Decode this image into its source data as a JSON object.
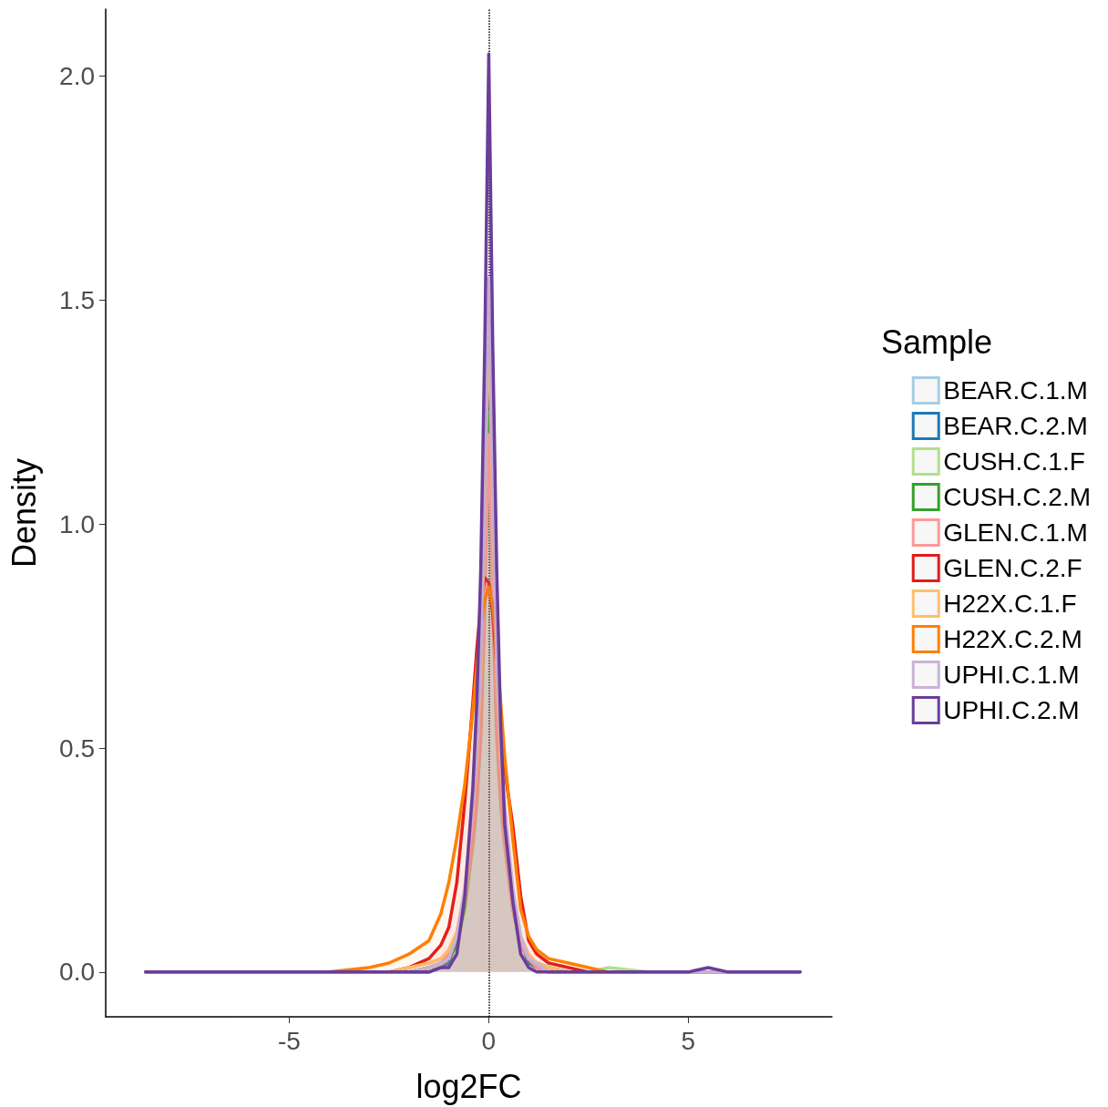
{
  "chart_data": {
    "type": "area",
    "xlabel": "log2FC",
    "ylabel": "Density",
    "legend_title": "Sample",
    "legend": "right",
    "grid": false,
    "marker": "none",
    "line_style": "solid",
    "x": [
      -8.6,
      -6,
      -5,
      -4,
      -3,
      -2.5,
      -2,
      -1.5,
      -1.2,
      -1,
      -0.8,
      -0.6,
      -0.4,
      -0.3,
      -0.2,
      -0.1,
      0,
      0.1,
      0.2,
      0.3,
      0.4,
      0.6,
      0.8,
      1,
      1.2,
      1.5,
      2,
      2.5,
      3,
      4,
      5,
      5.5,
      6,
      7,
      7.8
    ],
    "xlim": [
      -9.6,
      8.6
    ],
    "xticks": [
      -5,
      0,
      5
    ],
    "ylim": [
      -0.1,
      2.15
    ],
    "yticks": [
      {
        "value": 0,
        "label": "0.0"
      },
      0.5,
      {
        "value": 1,
        "label": "1.0"
      },
      1.5,
      {
        "value": 2,
        "label": "2.0"
      }
    ],
    "ref_lines": [
      {
        "axis": "x",
        "value": 0,
        "line_style": "dotted",
        "color": "#000000"
      }
    ],
    "series": [
      {
        "name": "BEAR.C.1.M",
        "color": "#a6cee3",
        "values": [
          0,
          0,
          0,
          0,
          0,
          0,
          0,
          0,
          0.01,
          0.02,
          0.07,
          0.16,
          0.32,
          0.43,
          0.61,
          0.95,
          1.35,
          0.95,
          0.61,
          0.43,
          0.32,
          0.16,
          0.07,
          0.02,
          0.01,
          0,
          0,
          0,
          0,
          0,
          0,
          0,
          0,
          0,
          0
        ]
      },
      {
        "name": "BEAR.C.2.M",
        "color": "#1f78b4",
        "values": [
          0,
          0,
          0,
          0,
          0,
          0,
          0,
          0,
          0.01,
          0.02,
          0.07,
          0.17,
          0.34,
          0.45,
          0.63,
          0.98,
          1.4,
          0.98,
          0.63,
          0.45,
          0.34,
          0.17,
          0.07,
          0.02,
          0.01,
          0,
          0,
          0,
          0,
          0,
          0,
          0,
          0,
          0,
          0
        ]
      },
      {
        "name": "CUSH.C.1.F",
        "color": "#b2df8a",
        "values": [
          0,
          0,
          0,
          0,
          0,
          0,
          0,
          0.01,
          0.02,
          0.03,
          0.06,
          0.14,
          0.28,
          0.37,
          0.52,
          0.8,
          1.15,
          0.8,
          0.52,
          0.37,
          0.28,
          0.14,
          0.06,
          0.03,
          0.02,
          0.01,
          0,
          0,
          0.01,
          0,
          0,
          0,
          0,
          0,
          0
        ]
      },
      {
        "name": "CUSH.C.2.M",
        "color": "#33a02c",
        "values": [
          0,
          0,
          0,
          0,
          0,
          0,
          0,
          0.01,
          0.02,
          0.03,
          0.06,
          0.15,
          0.3,
          0.4,
          0.56,
          0.88,
          1.25,
          0.88,
          0.56,
          0.4,
          0.3,
          0.15,
          0.06,
          0.03,
          0.02,
          0.01,
          0,
          0,
          0,
          0,
          0,
          0,
          0,
          0,
          0
        ]
      },
      {
        "name": "GLEN.C.1.M",
        "color": "#fb9a99",
        "values": [
          0,
          0,
          0,
          0,
          0,
          0,
          0,
          0.01,
          0.02,
          0.04,
          0.08,
          0.16,
          0.29,
          0.38,
          0.54,
          0.84,
          1.2,
          0.84,
          0.54,
          0.38,
          0.29,
          0.14,
          0.06,
          0.03,
          0.01,
          0,
          0,
          0,
          0,
          0,
          0,
          0,
          0,
          0,
          0
        ]
      },
      {
        "name": "GLEN.C.2.F",
        "color": "#e31a1c",
        "values": [
          0,
          0,
          0,
          0,
          0,
          0,
          0.01,
          0.03,
          0.06,
          0.1,
          0.2,
          0.38,
          0.6,
          0.72,
          0.82,
          0.88,
          0.87,
          0.8,
          0.68,
          0.55,
          0.45,
          0.33,
          0.17,
          0.07,
          0.04,
          0.02,
          0.01,
          0,
          0,
          0,
          0,
          0,
          0,
          0,
          0
        ]
      },
      {
        "name": "H22X.C.1.F",
        "color": "#fdbf6f",
        "values": [
          0,
          0,
          0,
          0,
          0,
          0,
          0.01,
          0.02,
          0.03,
          0.05,
          0.09,
          0.18,
          0.35,
          0.47,
          0.66,
          1.03,
          1.47,
          1.03,
          0.66,
          0.47,
          0.35,
          0.18,
          0.08,
          0.04,
          0.02,
          0.01,
          0,
          0,
          0,
          0,
          0,
          0,
          0,
          0,
          0
        ]
      },
      {
        "name": "H22X.C.2.M",
        "color": "#ff7f00",
        "values": [
          0,
          0,
          0,
          0,
          0.01,
          0.02,
          0.04,
          0.07,
          0.13,
          0.2,
          0.3,
          0.42,
          0.58,
          0.68,
          0.77,
          0.83,
          0.86,
          0.82,
          0.72,
          0.6,
          0.48,
          0.3,
          0.14,
          0.08,
          0.05,
          0.03,
          0.02,
          0.01,
          0,
          0,
          0,
          0,
          0,
          0,
          0
        ]
      },
      {
        "name": "UPHI.C.1.M",
        "color": "#cab2d6",
        "values": [
          0,
          0,
          0,
          0,
          0,
          0,
          0,
          0.01,
          0.02,
          0.03,
          0.08,
          0.19,
          0.37,
          0.5,
          0.7,
          1.09,
          1.55,
          1.09,
          0.7,
          0.5,
          0.37,
          0.19,
          0.08,
          0.03,
          0.02,
          0,
          0,
          0,
          0,
          0,
          0,
          0,
          0,
          0,
          0
        ]
      },
      {
        "name": "UPHI.C.2.M",
        "color": "#6a3d9a",
        "values": [
          0,
          0,
          0,
          0,
          0,
          0,
          0,
          0,
          0.01,
          0.01,
          0.04,
          0.17,
          0.41,
          0.6,
          0.9,
          1.4,
          2.05,
          1.4,
          0.9,
          0.55,
          0.33,
          0.16,
          0.04,
          0.01,
          0,
          0,
          0,
          0,
          0,
          0,
          0,
          0.01,
          0,
          0,
          0
        ]
      }
    ]
  }
}
